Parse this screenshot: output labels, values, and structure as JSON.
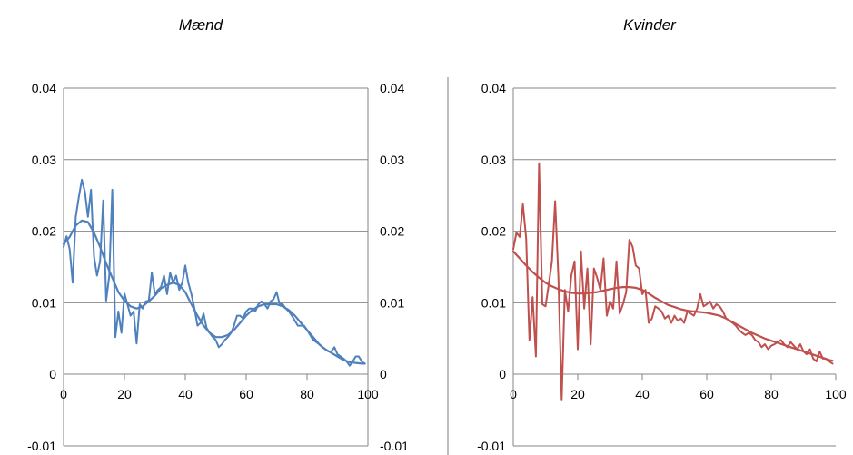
{
  "chart_data": [
    {
      "type": "line",
      "title": "Mænd",
      "xlim": [
        0,
        100
      ],
      "ylim": [
        -0.01,
        0.04
      ],
      "yticks": [
        "0.04",
        "0.03",
        "0.02",
        "0.01",
        "0",
        "-0.01"
      ],
      "xticks": [
        "0",
        "20",
        "40",
        "60",
        "80",
        "100"
      ],
      "color": "#4f81bd",
      "series": [
        {
          "style": "raw",
          "x": [
            0,
            1,
            2,
            3,
            4,
            5,
            6,
            7,
            8,
            9,
            10,
            11,
            12,
            13,
            14,
            15,
            16,
            17,
            18,
            19,
            20,
            21,
            22,
            23,
            24,
            25,
            26,
            27,
            28,
            29,
            30,
            31,
            32,
            33,
            34,
            35,
            36,
            37,
            38,
            39,
            40,
            41,
            42,
            43,
            44,
            45,
            46,
            47,
            48,
            49,
            50,
            51,
            52,
            53,
            54,
            55,
            56,
            57,
            58,
            59,
            60,
            61,
            62,
            63,
            64,
            65,
            66,
            67,
            68,
            69,
            70,
            71,
            72,
            73,
            74,
            75,
            76,
            77,
            78,
            79,
            80,
            81,
            82,
            83,
            84,
            85,
            86,
            87,
            88,
            89,
            90,
            91,
            92,
            93,
            94,
            95,
            96,
            97,
            98,
            99
          ],
          "y": [
            0.0178,
            0.0193,
            0.0175,
            0.0128,
            0.022,
            0.0248,
            0.0272,
            0.0255,
            0.022,
            0.0258,
            0.0165,
            0.0138,
            0.0158,
            0.0243,
            0.0103,
            0.0138,
            0.0258,
            0.0052,
            0.0088,
            0.0058,
            0.0113,
            0.0098,
            0.0082,
            0.0088,
            0.0043,
            0.0098,
            0.0092,
            0.0102,
            0.0103,
            0.0142,
            0.0112,
            0.0118,
            0.0122,
            0.0138,
            0.0112,
            0.0142,
            0.0128,
            0.0138,
            0.0118,
            0.0128,
            0.0152,
            0.0128,
            0.0112,
            0.0092,
            0.0068,
            0.0072,
            0.0085,
            0.0065,
            0.0058,
            0.0052,
            0.0048,
            0.0038,
            0.0042,
            0.0048,
            0.0052,
            0.0058,
            0.0068,
            0.0082,
            0.0082,
            0.0078,
            0.0088,
            0.0092,
            0.0092,
            0.0088,
            0.0098,
            0.0102,
            0.0098,
            0.0092,
            0.0102,
            0.0105,
            0.0115,
            0.0098,
            0.0098,
            0.0092,
            0.0088,
            0.0082,
            0.0075,
            0.0068,
            0.0068,
            0.0068,
            0.0062,
            0.0055,
            0.0048,
            0.0045,
            0.0042,
            0.0038,
            0.0035,
            0.0032,
            0.0032,
            0.0038,
            0.0028,
            0.0025,
            0.0022,
            0.0018,
            0.0012,
            0.0018,
            0.0025,
            0.0025,
            0.0018,
            0.0015
          ]
        },
        {
          "style": "smooth",
          "x": [
            0,
            2,
            4,
            6,
            8,
            10,
            12,
            14,
            16,
            18,
            20,
            22,
            24,
            26,
            28,
            30,
            32,
            34,
            36,
            38,
            40,
            42,
            44,
            46,
            48,
            50,
            52,
            54,
            56,
            58,
            60,
            62,
            64,
            66,
            68,
            70,
            72,
            74,
            76,
            78,
            80,
            82,
            84,
            86,
            88,
            90,
            92,
            94,
            96,
            98,
            99
          ],
          "y": [
            0.0182,
            0.0192,
            0.0208,
            0.0215,
            0.0213,
            0.0198,
            0.0178,
            0.0155,
            0.0135,
            0.0115,
            0.0103,
            0.0095,
            0.0092,
            0.0095,
            0.0102,
            0.011,
            0.012,
            0.0125,
            0.0128,
            0.0125,
            0.0115,
            0.0098,
            0.0082,
            0.0068,
            0.0058,
            0.0052,
            0.0052,
            0.0055,
            0.0062,
            0.0072,
            0.0082,
            0.009,
            0.0095,
            0.0098,
            0.0098,
            0.0098,
            0.0095,
            0.009,
            0.0082,
            0.0072,
            0.0062,
            0.0052,
            0.0042,
            0.0035,
            0.003,
            0.0025,
            0.002,
            0.0017,
            0.0016,
            0.0015,
            0.0015
          ]
        }
      ]
    },
    {
      "type": "line",
      "title": "Kvinder",
      "xlim": [
        0,
        100
      ],
      "ylim": [
        -0.01,
        0.04
      ],
      "yticks": [
        "0.04",
        "0.03",
        "0.02",
        "0.01",
        "0",
        "-0.01"
      ],
      "xticks": [
        "0",
        "20",
        "40",
        "60",
        "80",
        "100"
      ],
      "color": "#c0504d",
      "series": [
        {
          "style": "raw",
          "x": [
            0,
            1,
            2,
            3,
            4,
            5,
            6,
            7,
            8,
            9,
            10,
            11,
            12,
            13,
            14,
            15,
            16,
            17,
            18,
            19,
            20,
            21,
            22,
            23,
            24,
            25,
            26,
            27,
            28,
            29,
            30,
            31,
            32,
            33,
            34,
            35,
            36,
            37,
            38,
            39,
            40,
            41,
            42,
            43,
            44,
            45,
            46,
            47,
            48,
            49,
            50,
            51,
            52,
            53,
            54,
            55,
            56,
            57,
            58,
            59,
            60,
            61,
            62,
            63,
            64,
            65,
            66,
            67,
            68,
            69,
            70,
            71,
            72,
            73,
            74,
            75,
            76,
            77,
            78,
            79,
            80,
            81,
            82,
            83,
            84,
            85,
            86,
            87,
            88,
            89,
            90,
            91,
            92,
            93,
            94,
            95,
            96,
            97,
            98,
            99
          ],
          "y": [
            0.0175,
            0.0198,
            0.0192,
            0.0238,
            0.019,
            0.0048,
            0.0108,
            0.0025,
            0.0295,
            0.0098,
            0.0095,
            0.0125,
            0.0158,
            0.0242,
            0.0135,
            -0.0035,
            0.0118,
            0.0088,
            0.0138,
            0.0158,
            0.0035,
            0.0172,
            0.0092,
            0.0148,
            0.0042,
            0.0148,
            0.0135,
            0.0118,
            0.0162,
            0.0082,
            0.0102,
            0.0092,
            0.0158,
            0.0085,
            0.0098,
            0.0115,
            0.0188,
            0.0178,
            0.0152,
            0.0148,
            0.0112,
            0.0118,
            0.0072,
            0.0078,
            0.0095,
            0.0092,
            0.0088,
            0.0078,
            0.0082,
            0.0072,
            0.0082,
            0.0075,
            0.0078,
            0.0072,
            0.0088,
            0.0085,
            0.0082,
            0.0092,
            0.0112,
            0.0095,
            0.0098,
            0.0102,
            0.0092,
            0.0098,
            0.0095,
            0.0088,
            0.0078,
            0.0075,
            0.0072,
            0.0068,
            0.0062,
            0.0058,
            0.0055,
            0.0058,
            0.0055,
            0.0048,
            0.0045,
            0.0038,
            0.0042,
            0.0035,
            0.004,
            0.0042,
            0.0045,
            0.0048,
            0.0042,
            0.0038,
            0.0045,
            0.004,
            0.0035,
            0.0042,
            0.0032,
            0.0028,
            0.0035,
            0.0022,
            0.0018,
            0.0032,
            0.0022,
            0.0022,
            0.0018,
            0.0015
          ]
        },
        {
          "style": "smooth",
          "x": [
            0,
            2,
            4,
            6,
            8,
            10,
            12,
            14,
            16,
            18,
            20,
            22,
            24,
            26,
            28,
            30,
            32,
            34,
            36,
            38,
            40,
            42,
            44,
            46,
            48,
            50,
            52,
            54,
            56,
            58,
            60,
            62,
            64,
            66,
            68,
            70,
            72,
            74,
            76,
            78,
            80,
            82,
            84,
            86,
            88,
            90,
            92,
            94,
            96,
            98,
            99
          ],
          "y": [
            0.0172,
            0.0162,
            0.0152,
            0.0143,
            0.0135,
            0.0128,
            0.0123,
            0.0119,
            0.0116,
            0.0114,
            0.0113,
            0.0113,
            0.0114,
            0.0115,
            0.0117,
            0.0119,
            0.0121,
            0.0122,
            0.0122,
            0.0121,
            0.0118,
            0.0113,
            0.0107,
            0.0102,
            0.0097,
            0.0094,
            0.0091,
            0.0089,
            0.0088,
            0.0087,
            0.0086,
            0.0084,
            0.0082,
            0.0078,
            0.0073,
            0.0068,
            0.0063,
            0.0058,
            0.0054,
            0.005,
            0.0047,
            0.0044,
            0.0041,
            0.0038,
            0.0035,
            0.0032,
            0.0029,
            0.0026,
            0.0023,
            0.002,
            0.0019
          ]
        }
      ]
    }
  ]
}
